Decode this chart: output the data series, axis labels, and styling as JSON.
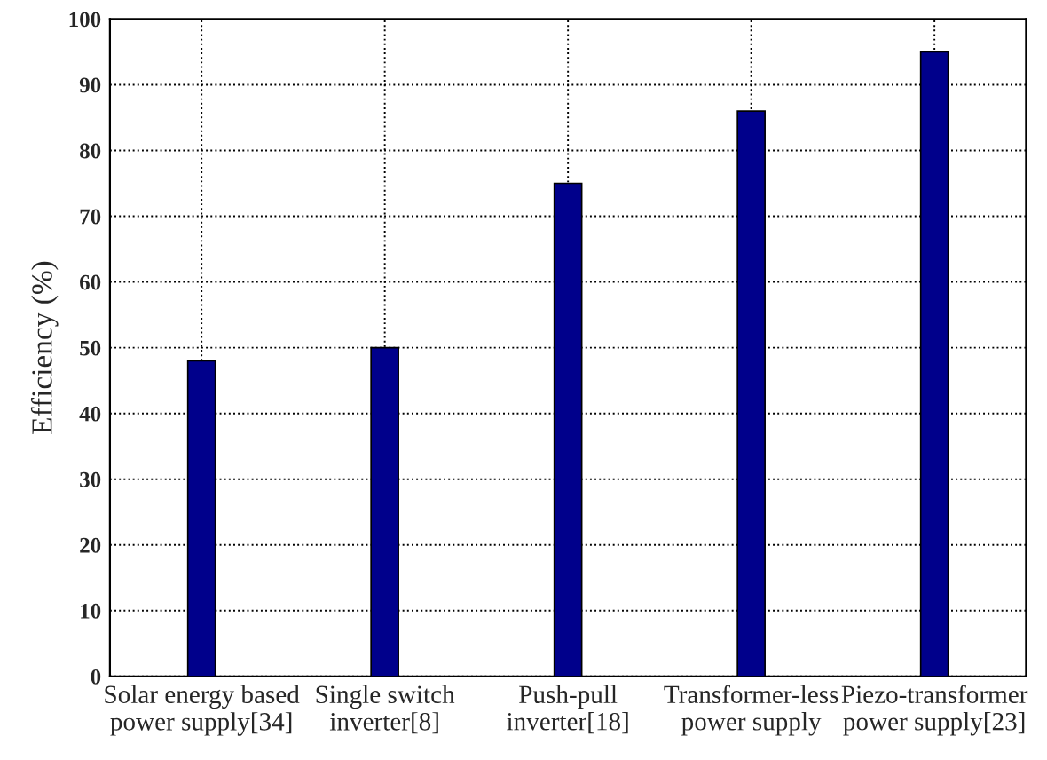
{
  "chart_data": {
    "type": "bar",
    "ylabel": "Efficiency (%)",
    "categories": [
      "Solar energy based\npower supply[34]",
      "Single switch\ninverter[8]",
      "Push-pull\ninverter[18]",
      "Transformer-less\npower supply",
      "Piezo-transformer\npower supply[23]"
    ],
    "values": [
      48,
      50,
      75,
      86,
      95
    ],
    "color": "#00008b",
    "ylim": [
      0,
      100
    ],
    "yticks": [
      0,
      10,
      20,
      30,
      40,
      50,
      60,
      70,
      80,
      90,
      100
    ],
    "grid": true
  }
}
